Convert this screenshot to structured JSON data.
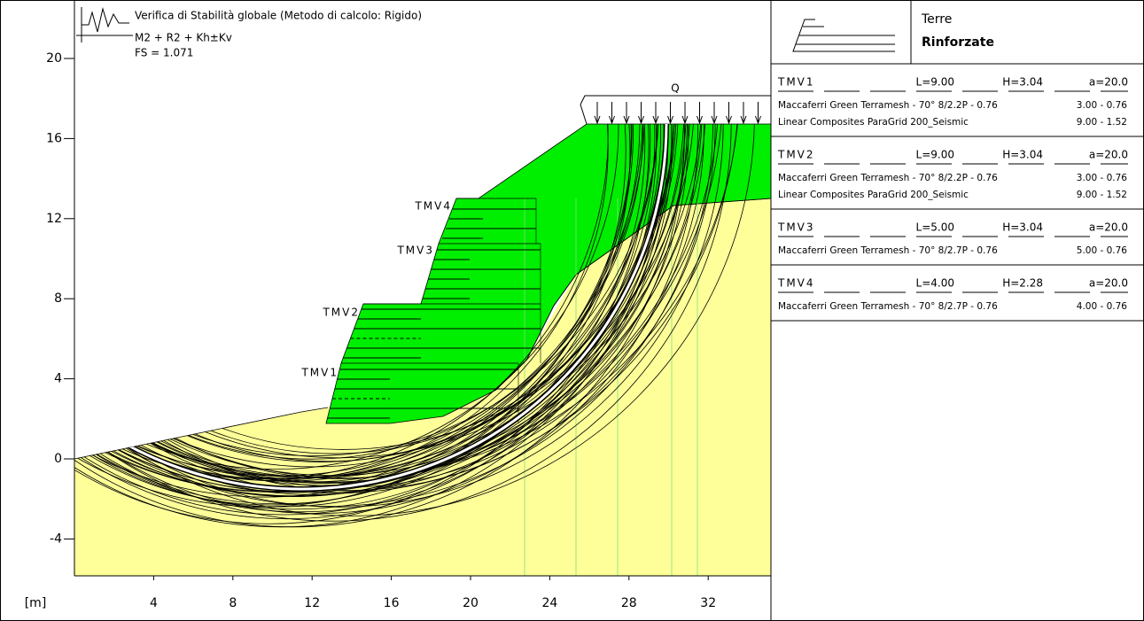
{
  "header": {
    "title": "Verifica di Stabilità globale (Metodo di calcolo: Rigido)",
    "lines": [
      "M2 + R2 + Kh±Kv",
      "FS = 1.071"
    ]
  },
  "axes": {
    "unit": "[m]",
    "x_ticks": [
      4,
      8,
      12,
      16,
      20,
      24,
      28,
      32
    ],
    "y_ticks": [
      20,
      16,
      12,
      8,
      4,
      0,
      -4
    ]
  },
  "labels": {
    "load": "Q",
    "blocks": [
      "TMV4",
      "TMV3",
      "TMV2",
      "TMV1"
    ]
  },
  "panel": {
    "title": [
      "Terre",
      "Rinforzate"
    ],
    "rows": [
      {
        "name": "TMV1",
        "L": "L=9.00",
        "H": "H=3.04",
        "a": "a=20.0",
        "materials": [
          {
            "name": "Maccaferri Green Terramesh - 70° 8/2.2P - 0.76",
            "value": "3.00 - 0.76"
          },
          {
            "name": "Linear Composites ParaGrid 200_Seismic",
            "value": "9.00 - 1.52"
          }
        ]
      },
      {
        "name": "TMV2",
        "L": "L=9.00",
        "H": "H=3.04",
        "a": "a=20.0",
        "materials": [
          {
            "name": "Maccaferri Green Terramesh - 70° 8/2.2P - 0.76",
            "value": "3.00 - 0.76"
          },
          {
            "name": "Linear Composites ParaGrid 200_Seismic",
            "value": "9.00 - 1.52"
          }
        ]
      },
      {
        "name": "TMV3",
        "L": "L=5.00",
        "H": "H=3.04",
        "a": "a=20.0",
        "materials": [
          {
            "name": "Maccaferri Green Terramesh - 70° 8/2.7P - 0.76",
            "value": "5.00 - 0.76"
          }
        ]
      },
      {
        "name": "TMV4",
        "L": "L=4.00",
        "H": "H=2.28",
        "a": "a=20.0",
        "materials": [
          {
            "name": "Maccaferri Green Terramesh - 70° 8/2.7P - 0.76",
            "value": "4.00 - 0.76"
          }
        ]
      }
    ]
  }
}
